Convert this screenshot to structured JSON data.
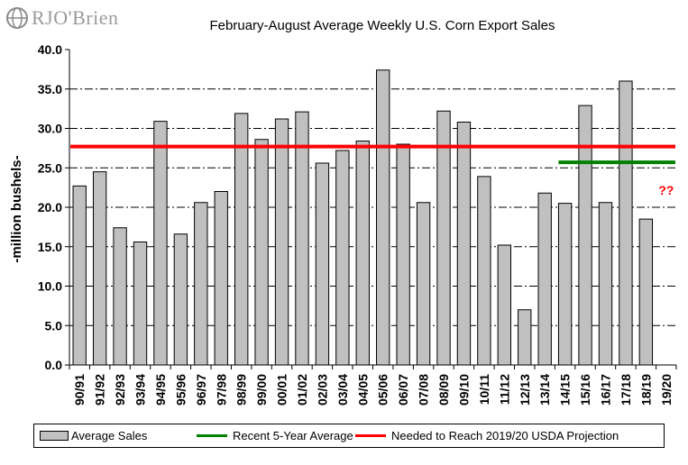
{
  "logo": {
    "text": "RJO'Brien"
  },
  "chart_data": {
    "type": "bar",
    "title": "February-August Average Weekly U.S. Corn Export Sales",
    "ylabel": "-million bushels-",
    "xlabel": "",
    "ylim": [
      0,
      40
    ],
    "yticks": [
      "0.0",
      "5.0",
      "10.0",
      "15.0",
      "20.0",
      "25.0",
      "30.0",
      "35.0",
      "40.0"
    ],
    "grid": true,
    "categories": [
      "90/91",
      "91/92",
      "92/93",
      "93/94",
      "94/95",
      "95/96",
      "96/97",
      "97/98",
      "98/99",
      "99/00",
      "00/01",
      "01/02",
      "02/03",
      "03/04",
      "04/05",
      "05/06",
      "06/07",
      "07/08",
      "08/09",
      "09/10",
      "10/11",
      "11/12",
      "12/13",
      "13/14",
      "14/15",
      "15/16",
      "16/17",
      "17/18",
      "18/19",
      "19/20"
    ],
    "series": [
      {
        "name": "Average Sales",
        "type": "bar",
        "color": "#c0c0c0",
        "values": [
          22.7,
          24.5,
          17.4,
          15.6,
          30.9,
          16.6,
          20.6,
          22.0,
          31.9,
          28.6,
          31.2,
          32.1,
          25.6,
          27.2,
          28.4,
          37.4,
          28.0,
          20.6,
          32.2,
          30.8,
          23.9,
          15.2,
          7.0,
          21.8,
          20.5,
          32.9,
          20.6,
          36.0,
          18.5,
          null
        ]
      },
      {
        "name": "Recent 5-Year Average",
        "type": "line",
        "color": "#008000",
        "from": "14/15",
        "to": "19/20",
        "value": 25.7
      },
      {
        "name": "Needed to Reach 2019/20 USDA Projection",
        "type": "line",
        "color": "#ff0000",
        "from": "90/91",
        "to": "19/20",
        "value": 27.7
      }
    ],
    "annotations": [
      {
        "text": "??",
        "category": "19/20",
        "value": 22.3,
        "color": "#ff0000"
      }
    ],
    "legend": "bottom"
  }
}
